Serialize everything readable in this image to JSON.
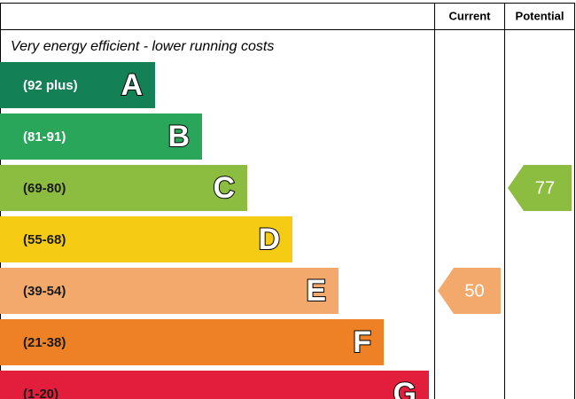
{
  "chart_data": {
    "type": "epc",
    "columns": [
      "Current",
      "Potential"
    ],
    "note": "Very energy efficient - lower running costs",
    "bands": [
      {
        "label": "(92 plus)",
        "letter": "A",
        "color": "#138056",
        "text_color": "#ffffff"
      },
      {
        "label": "(81-91)",
        "letter": "B",
        "color": "#2aa65a",
        "text_color": "#ffffff"
      },
      {
        "label": "(69-80)",
        "letter": "C",
        "color": "#8dbd40",
        "text_color": "#1a1a1a"
      },
      {
        "label": "(55-68)",
        "letter": "D",
        "color": "#f5cb14",
        "text_color": "#1a1a1a"
      },
      {
        "label": "(39-54)",
        "letter": "E",
        "color": "#f2a96b",
        "text_color": "#1a1a1a"
      },
      {
        "label": "(21-38)",
        "letter": "F",
        "color": "#ee8126",
        "text_color": "#1a1a1a"
      },
      {
        "label": "(1-20)",
        "letter": "G",
        "color": "#e31d3c",
        "text_color": "#1a1a1a"
      }
    ],
    "current": {
      "value": 50
    },
    "potential": {
      "value": 77
    }
  }
}
